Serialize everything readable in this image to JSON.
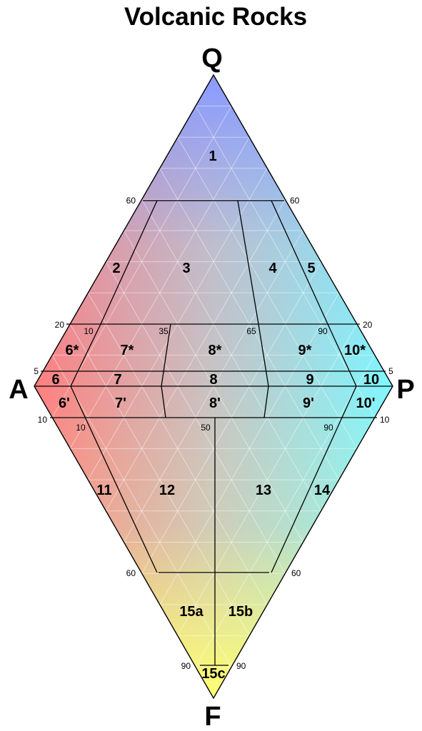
{
  "diagram": {
    "title": "Volcanic Rocks",
    "apices": {
      "top": "Q",
      "left": "A",
      "right": "P",
      "bottom": "F"
    },
    "fields": [
      "1",
      "2",
      "3",
      "4",
      "5",
      "6*",
      "7*",
      "8*",
      "9*",
      "10*",
      "6",
      "7",
      "8",
      "9",
      "10",
      "6'",
      "7'",
      "8'",
      "9'",
      "10'",
      "11",
      "12",
      "13",
      "14",
      "15a",
      "15b",
      "15c"
    ],
    "ticks": {
      "q60_left": "60",
      "q60_right": "60",
      "q20_left": "20",
      "q20_right": "20",
      "q5_left": "5",
      "q5_right": "5",
      "p10_upper": "10",
      "p35_upper": "35",
      "p65_upper": "65",
      "p90_upper": "90",
      "f10_left": "10",
      "f10_right": "10",
      "p10_lower": "10",
      "p50_lower": "50",
      "p90_lower": "90",
      "f60_left": "60",
      "f60_right": "60",
      "f90_left": "90",
      "f90_right": "90"
    },
    "colors": {
      "Q": "#8a9bff",
      "A": "#ff7f7f",
      "P": "#7ff7ff",
      "F": "#ffff73",
      "center": "#c9c2c2"
    }
  }
}
